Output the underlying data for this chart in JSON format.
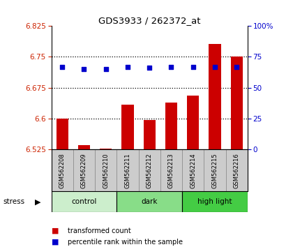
{
  "title": "GDS3933 / 262372_at",
  "samples": [
    "GSM562208",
    "GSM562209",
    "GSM562210",
    "GSM562211",
    "GSM562212",
    "GSM562213",
    "GSM562214",
    "GSM562215",
    "GSM562216"
  ],
  "bar_values": [
    6.6,
    6.535,
    6.527,
    6.633,
    6.597,
    6.639,
    6.655,
    6.782,
    6.75
  ],
  "percentile_values": [
    67,
    65,
    65,
    67,
    66,
    67,
    67,
    67,
    67
  ],
  "ymin": 6.525,
  "ymax": 6.825,
  "yticks": [
    6.525,
    6.6,
    6.675,
    6.75,
    6.825
  ],
  "right_yticks": [
    0,
    25,
    50,
    75,
    100
  ],
  "bar_color": "#cc0000",
  "dot_color": "#0000cc",
  "groups": [
    {
      "label": "control",
      "start": 0,
      "end": 3,
      "color": "#cceecc"
    },
    {
      "label": "dark",
      "start": 3,
      "end": 6,
      "color": "#88dd88"
    },
    {
      "label": "high light",
      "start": 6,
      "end": 9,
      "color": "#44cc44"
    }
  ],
  "stress_label": "stress",
  "legend_red": "transformed count",
  "legend_blue": "percentile rank within the sample",
  "bg_color": "#ffffff",
  "plot_bg": "#ffffff",
  "tick_label_color_left": "#cc2200",
  "tick_label_color_right": "#0000cc",
  "sample_bg": "#cccccc",
  "grid_dotted": [
    6.75,
    6.675,
    6.6
  ]
}
